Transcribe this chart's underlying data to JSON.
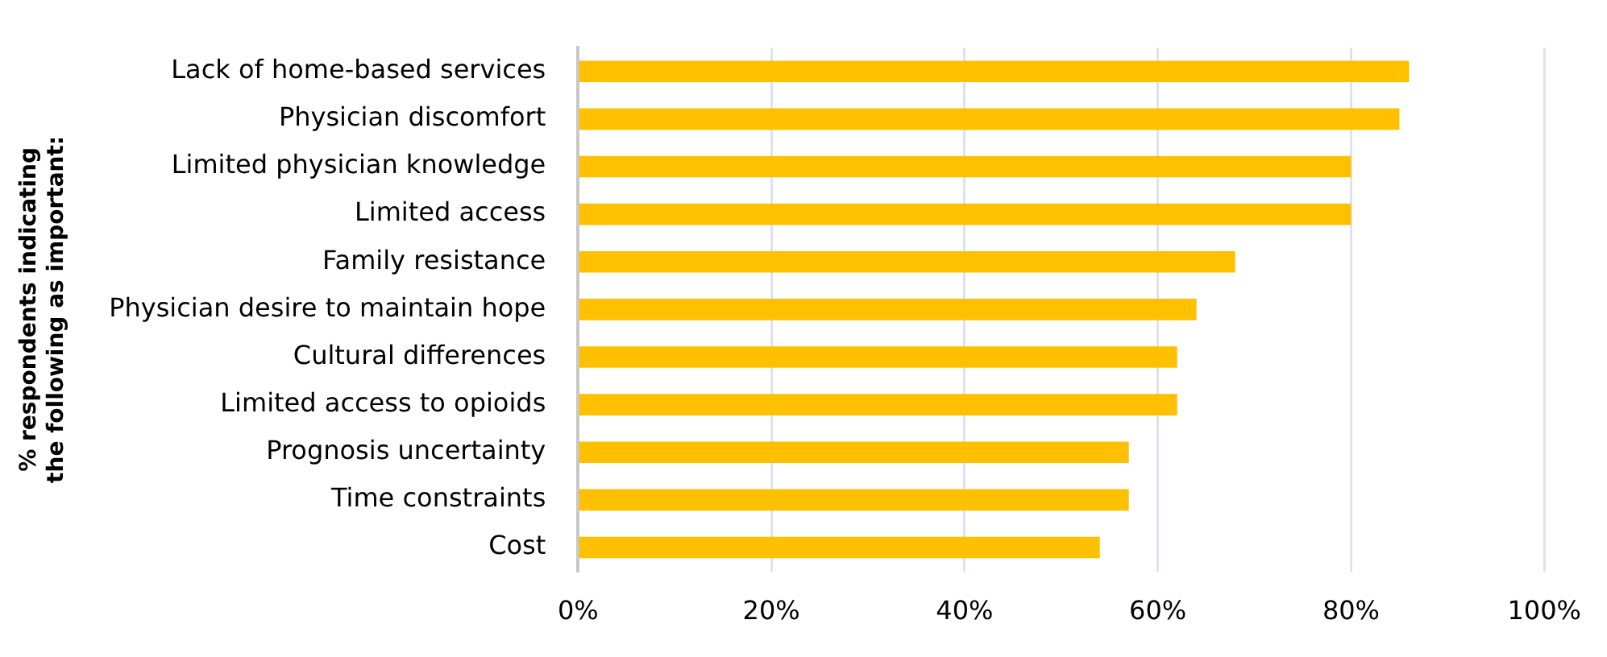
{
  "chart_data": {
    "type": "bar",
    "orientation": "horizontal",
    "ylabel": "% respondents indicating the following as important:",
    "categories": [
      "Lack of home-based services",
      "Physician discomfort",
      "Limited physician knowledge",
      "Limited access",
      "Family resistance",
      "Physician desire to maintain hope",
      "Cultural differences",
      "Limited access to opioids",
      "Prognosis uncertainty",
      "Time constraints",
      "Cost"
    ],
    "values": [
      86,
      85,
      80,
      80,
      68,
      64,
      62,
      62,
      57,
      57,
      54
    ],
    "color": "#ffc000",
    "xlim": [
      0,
      100
    ],
    "xticks": [
      {
        "value": 0,
        "label": "0%"
      },
      {
        "value": 20,
        "label": "20%"
      },
      {
        "value": 40,
        "label": "40%"
      },
      {
        "value": 60,
        "label": "60%"
      },
      {
        "value": 80,
        "label": "80%"
      },
      {
        "value": 100,
        "label": "100%"
      }
    ],
    "grid": "x",
    "legend": false
  }
}
